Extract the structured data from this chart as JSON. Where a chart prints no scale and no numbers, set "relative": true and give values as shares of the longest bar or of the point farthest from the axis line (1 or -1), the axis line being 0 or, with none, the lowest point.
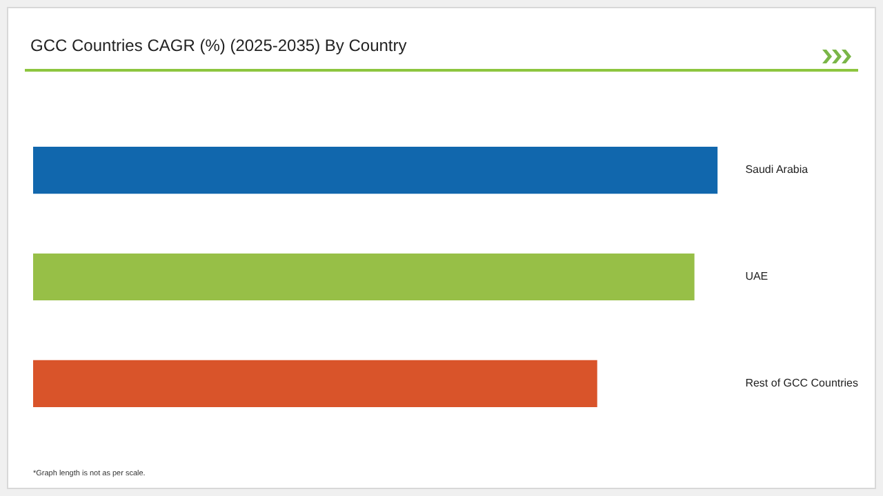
{
  "chart_data": {
    "type": "bar",
    "orientation": "horizontal",
    "relative": true,
    "title": "GCC Countries CAGR (%) (2025-2035) By Country",
    "categories": [
      "Saudi Arabia",
      "UAE",
      "Rest of GCC Countries"
    ],
    "values": [
      1,
      0.966,
      0.824
    ],
    "colors": [
      "#1167ad",
      "#97bf47",
      "#d9542a"
    ],
    "annotations": [
      "*Graph length is not as per scale."
    ]
  }
}
